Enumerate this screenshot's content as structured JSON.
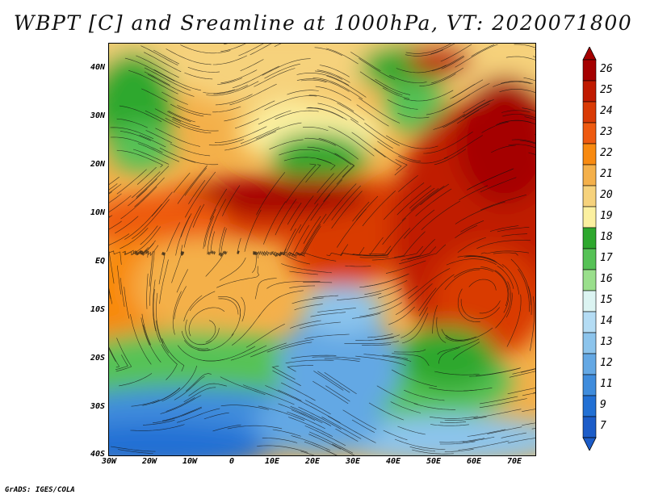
{
  "title": "WBPT [C] and Sreamline at 1000hPa, VT: 2020071800",
  "credit": "GrADS: IGES/COLA",
  "lat_labels": [
    "40N",
    "30N",
    "20N",
    "10N",
    "EQ",
    "10S",
    "20S",
    "30S",
    "40S"
  ],
  "lon_labels": [
    "30W",
    "20W",
    "10W",
    "0",
    "10E",
    "20E",
    "30E",
    "40E",
    "50E",
    "60E",
    "70E"
  ],
  "colorbar": {
    "labels": [
      "26",
      "25",
      "24",
      "23",
      "22",
      "21",
      "20",
      "19",
      "18",
      "17",
      "16",
      "15",
      "14",
      "13",
      "12",
      "11",
      "9",
      "7"
    ],
    "colors": [
      "#a50000",
      "#c01a00",
      "#d93a05",
      "#ee5a10",
      "#f88a10",
      "#f4b04a",
      "#f6d27c",
      "#fbf0a0",
      "#2ea82e",
      "#56c256",
      "#9adf8c",
      "#dcf4f2",
      "#b4dcf4",
      "#8cc4ec",
      "#64a8e4",
      "#3f8cdc",
      "#2270d4",
      "#1c5cc8"
    ]
  }
}
